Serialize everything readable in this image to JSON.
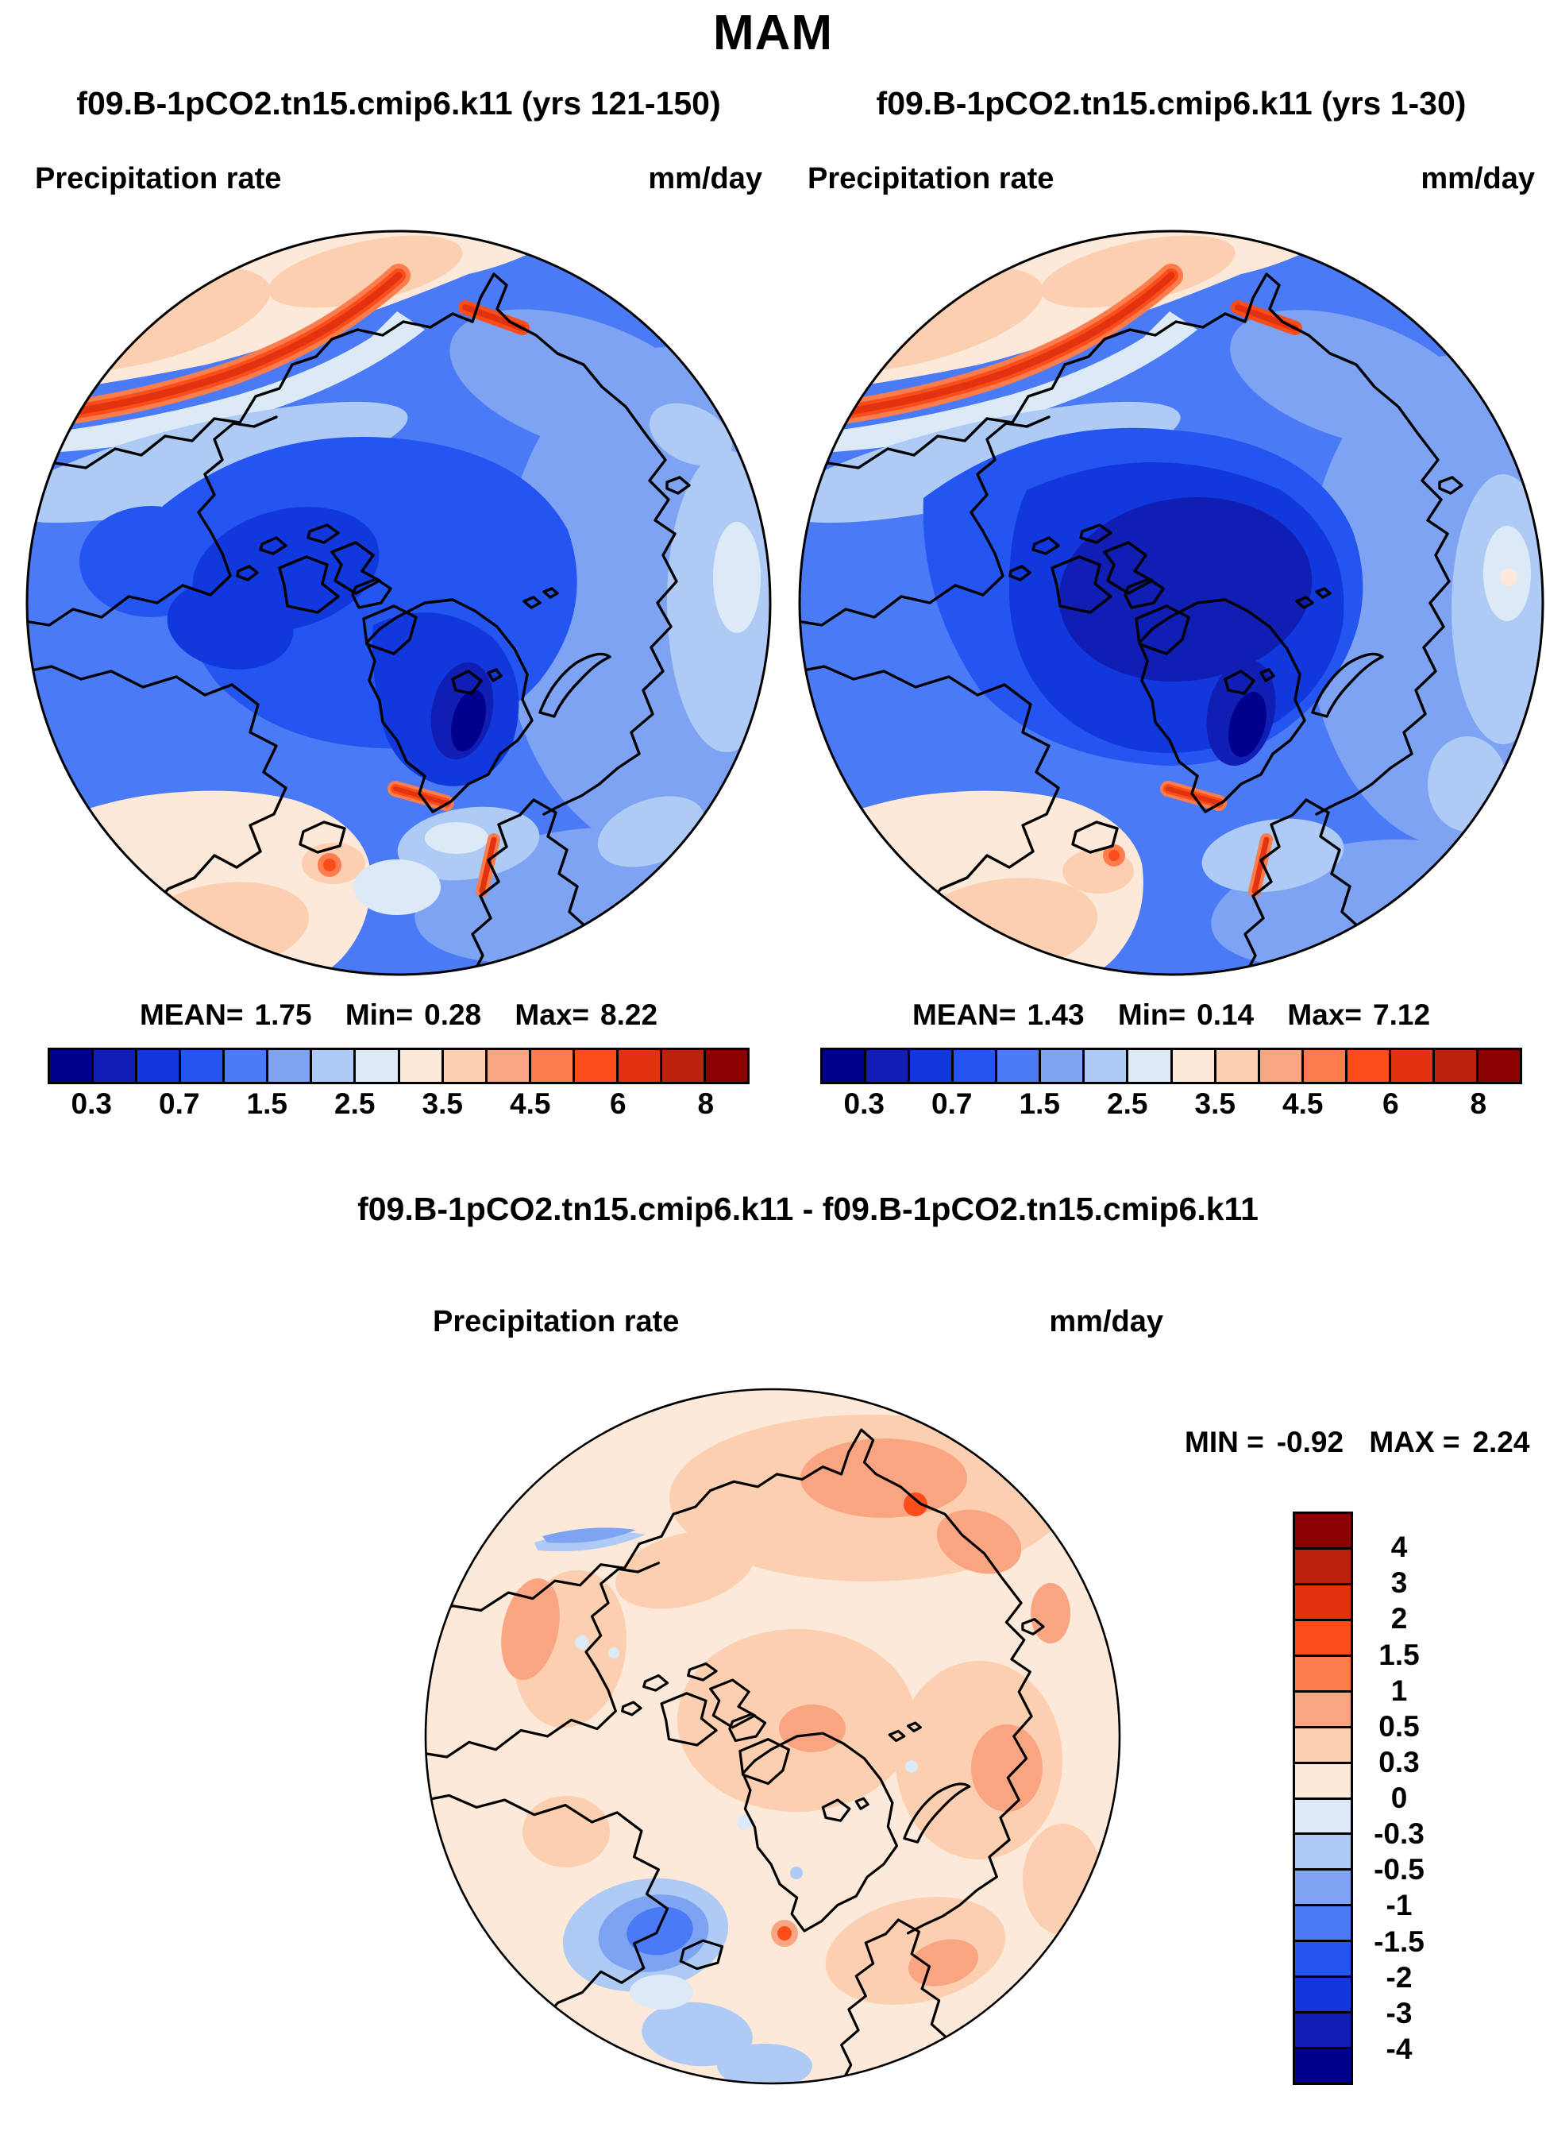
{
  "title": "MAM",
  "panels": [
    {
      "subtitle": "f09.B-1pCO2.tn15.cmip6.k11 (yrs 121-150)",
      "field_label": "Precipitation rate",
      "units": "mm/day",
      "stats": {
        "mean_label": "MEAN=",
        "mean_value": "1.75",
        "min_label": "Min=",
        "min_value": "0.28",
        "max_label": "Max=",
        "max_value": "8.22"
      }
    },
    {
      "subtitle": "f09.B-1pCO2.tn15.cmip6.k11 (yrs 1-30)",
      "field_label": "Precipitation rate",
      "units": "mm/day",
      "stats": {
        "mean_label": "MEAN=",
        "mean_value": "1.43",
        "min_label": "Min=",
        "min_value": "0.14",
        "max_label": "Max=",
        "max_value": "7.12"
      }
    }
  ],
  "top_colorbar": {
    "colors": [
      "#00008C",
      "#101EB4",
      "#1038DC",
      "#2455F0",
      "#4A7AF5",
      "#7DA3F2",
      "#AECBF5",
      "#DCEAF8",
      "#FDE9D9",
      "#FBCFB0",
      "#FAA582",
      "#FB7C4C",
      "#FA4D1A",
      "#E23210",
      "#B9220B",
      "#8B0000"
    ],
    "tick_labels": [
      "0.3",
      "0.7",
      "1.5",
      "2.5",
      "3.5",
      "4.5",
      "6",
      "8"
    ]
  },
  "difference": {
    "title": "f09.B-1pCO2.tn15.cmip6.k11 - f09.B-1pCO2.tn15.cmip6.k11",
    "field_label": "Precipitation rate",
    "units": "mm/day",
    "stats": {
      "min_label": "MIN =",
      "min_value": "-0.92",
      "max_label": "MAX =",
      "max_value": "2.24"
    },
    "colorbar": {
      "colors": [
        "#8B0000",
        "#B9220B",
        "#E23210",
        "#FA4D1A",
        "#FB7C4C",
        "#FAA582",
        "#FBCFB0",
        "#FDE9D9",
        "#DCEAF8",
        "#AECBF5",
        "#7DA3F2",
        "#4A7AF5",
        "#2455F0",
        "#1038DC",
        "#101EB4",
        "#00008C"
      ],
      "tick_labels": [
        "4",
        "3",
        "2",
        "1.5",
        "1",
        "0.5",
        "0.3",
        "0",
        "-0.3",
        "-0.5",
        "-1",
        "-1.5",
        "-2",
        "-3",
        "-4"
      ]
    }
  },
  "chart_data": {
    "type": "heatmap",
    "projection": "north-polar-stereographic",
    "season_title": "MAM",
    "variable": "Precipitation rate",
    "units": "mm/day",
    "n_color_bins": 16,
    "panels": [
      {
        "name": "f09.B-1pCO2.tn15.cmip6.k11 (yrs 121-150)",
        "mean": 1.75,
        "min": 0.28,
        "max": 8.22,
        "colorbar_ticks": [
          0.3,
          0.7,
          1.5,
          2.5,
          3.5,
          4.5,
          6,
          8
        ],
        "legend_position": "below"
      },
      {
        "name": "f09.B-1pCO2.tn15.cmip6.k11 (yrs 1-30)",
        "mean": 1.43,
        "min": 0.14,
        "max": 7.12,
        "colorbar_ticks": [
          0.3,
          0.7,
          1.5,
          2.5,
          3.5,
          4.5,
          6,
          8
        ],
        "legend_position": "below"
      },
      {
        "name": "f09.B-1pCO2.tn15.cmip6.k11 - f09.B-1pCO2.tn15.cmip6.k11",
        "min": -0.92,
        "max": 2.24,
        "colorbar_ticks": [
          4,
          3,
          2,
          1.5,
          1,
          0.5,
          0.3,
          0,
          -0.3,
          -0.5,
          -1,
          -1.5,
          -2,
          -3,
          -4
        ],
        "legend_position": "right"
      }
    ]
  }
}
